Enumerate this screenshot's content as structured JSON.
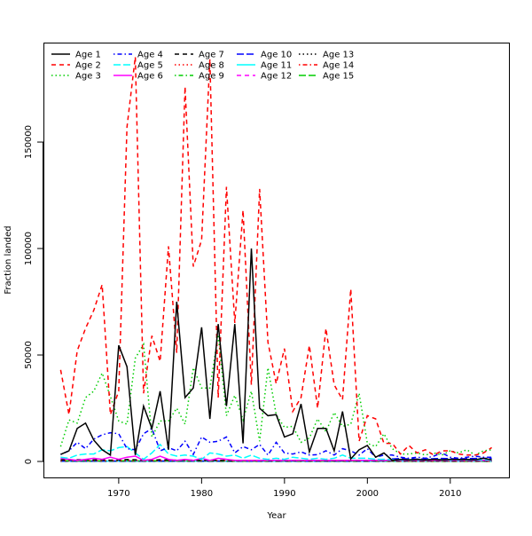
{
  "chart_data": {
    "type": "line",
    "xlabel": "Year",
    "ylabel": "Fraction landed",
    "xlim": [
      1960.92,
      2017.08
    ],
    "ylim": [
      -7500,
      196700
    ],
    "x_ticks": [
      1970,
      1980,
      1990,
      2000,
      2010
    ],
    "y_ticks": [
      0,
      50000,
      100000,
      150000
    ],
    "x_tick_labels": [
      "1970",
      "1980",
      "1990",
      "2000",
      "2010"
    ],
    "y_tick_labels": [
      "0",
      "50000",
      "100000",
      "150000"
    ],
    "grid": false,
    "legend_position": "top-left",
    "x_start": 1963,
    "x_end": 2015,
    "series": [
      {
        "name": "Age 1",
        "color": "#000000",
        "style": "solid",
        "values": [
          3300,
          5000,
          15500,
          18000,
          10000,
          5500,
          3000,
          54500,
          44500,
          3000,
          26000,
          15500,
          33000,
          5500,
          75000,
          30000,
          34500,
          63000,
          20000,
          64500,
          26000,
          64500,
          8500,
          100000,
          25000,
          21500,
          22000,
          11500,
          13000,
          27000,
          4500,
          15500,
          15500,
          5000,
          23500,
          1200,
          5500,
          7500,
          2000,
          4000,
          500,
          1000,
          800,
          1000,
          700,
          1000,
          800,
          1000,
          900,
          1000,
          800,
          1500,
          800
        ]
      },
      {
        "name": "Age 2",
        "color": "#ff0000",
        "style": "dashed",
        "values": [
          43000,
          22000,
          52000,
          62500,
          71000,
          83000,
          22000,
          33000,
          157000,
          190000,
          32000,
          59000,
          47000,
          101000,
          51000,
          176000,
          91500,
          104000,
          189000,
          30000,
          129000,
          65000,
          118000,
          36000,
          128000,
          56000,
          36500,
          53000,
          23500,
          30000,
          54500,
          25000,
          62500,
          36000,
          29000,
          81000,
          9500,
          21500,
          20000,
          8500,
          8500,
          3500,
          7500,
          4000,
          5500,
          3000,
          5000,
          5000,
          3500,
          3000,
          3000,
          4000,
          6500
        ]
      },
      {
        "name": "Age 3",
        "color": "#00cd00",
        "style": "dotted",
        "values": [
          7000,
          19500,
          18000,
          30000,
          33000,
          41500,
          30500,
          19000,
          17500,
          48500,
          55000,
          11500,
          19000,
          19000,
          25000,
          17500,
          44000,
          34500,
          34500,
          59500,
          21500,
          31000,
          19500,
          33000,
          9500,
          44000,
          22000,
          16000,
          16500,
          9000,
          11000,
          20000,
          14000,
          23000,
          16500,
          17500,
          32000,
          8500,
          7000,
          13000,
          6000,
          3500,
          3500,
          4000,
          3000,
          4000,
          3000,
          5000,
          4000,
          5500,
          3000,
          5000,
          5500
        ]
      },
      {
        "name": "Age 4",
        "color": "#0000ff",
        "style": "dotdash",
        "values": [
          3300,
          5000,
          9000,
          6000,
          10500,
          12500,
          13500,
          13000,
          6000,
          5500,
          13000,
          15500,
          5000,
          6500,
          5000,
          9500,
          3300,
          11500,
          9000,
          9500,
          11500,
          4000,
          7000,
          5500,
          8000,
          3000,
          9000,
          4000,
          3500,
          4500,
          3000,
          3200,
          5000,
          3000,
          6000,
          5000,
          3000,
          6000,
          2000,
          3000,
          3000,
          2000,
          1500,
          2000,
          1500,
          2500,
          4000,
          2000,
          1500,
          2000,
          2500,
          2000,
          2000
        ]
      },
      {
        "name": "Age 5",
        "color": "#00ffff",
        "style": "longdash",
        "values": [
          2000,
          1500,
          3000,
          3500,
          3500,
          5500,
          5000,
          6500,
          7000,
          4000,
          1000,
          4000,
          8000,
          3500,
          2500,
          3000,
          2500,
          1000,
          4000,
          3500,
          2500,
          3000,
          1500,
          3000,
          1500,
          1000,
          1500,
          1000,
          2000,
          1500,
          1000,
          1500,
          1000,
          1500,
          3000,
          1500,
          1500,
          1500,
          1000,
          1000,
          800,
          800,
          800,
          800,
          800,
          1000,
          800,
          800,
          800,
          800,
          800,
          800,
          800
        ]
      },
      {
        "name": "Age 6",
        "color": "#ff00ff",
        "style": "solid",
        "values": [
          1500,
          1000,
          500,
          1000,
          1500,
          1000,
          2000,
          1000,
          2000,
          2500,
          500,
          1000,
          2500,
          1000,
          500,
          1000,
          500,
          1500,
          500,
          1500,
          1000,
          500,
          500,
          500,
          500,
          500,
          500,
          500,
          500,
          500,
          500,
          500,
          500,
          500,
          500,
          500,
          500,
          500,
          500,
          500,
          500,
          500,
          500,
          500,
          500,
          500,
          500,
          500,
          500,
          500,
          500,
          500,
          500
        ]
      },
      {
        "name": "Age 7",
        "color": "#000000",
        "style": "dashed",
        "values": [
          800,
          700,
          800,
          900,
          700,
          800,
          600,
          700,
          900,
          800,
          700,
          600,
          800,
          700,
          600,
          700,
          600,
          500,
          600,
          500,
          500,
          400,
          500,
          400,
          400,
          300,
          300,
          300,
          300,
          300,
          300,
          300,
          300,
          300,
          300,
          300,
          300,
          300,
          300,
          300,
          200,
          200,
          200,
          200,
          200,
          200,
          200,
          200,
          200,
          200,
          200,
          200,
          200
        ]
      },
      {
        "name": "Age 8",
        "color": "#ff0000",
        "style": "dotted",
        "values": [
          400,
          400,
          400,
          400,
          400,
          400,
          400,
          400,
          400,
          400,
          400,
          400,
          400,
          400,
          400,
          400,
          400,
          400,
          400,
          400,
          300,
          300,
          300,
          300,
          300,
          300,
          300,
          300,
          300,
          300,
          300,
          300,
          300,
          300,
          300,
          300,
          300,
          300,
          300,
          300,
          200,
          200,
          200,
          200,
          200,
          200,
          200,
          200,
          200,
          200,
          200,
          200,
          200
        ]
      },
      {
        "name": "Age 9",
        "color": "#00cd00",
        "style": "dotdash",
        "values": [
          300,
          300,
          300,
          300,
          300,
          300,
          300,
          300,
          300,
          300,
          300,
          300,
          300,
          300,
          300,
          300,
          300,
          300,
          300,
          300,
          200,
          200,
          200,
          200,
          200,
          200,
          200,
          200,
          200,
          200,
          200,
          200,
          200,
          200,
          200,
          200,
          200,
          200,
          200,
          200,
          150,
          150,
          150,
          150,
          150,
          150,
          150,
          150,
          150,
          150,
          150,
          150,
          150
        ]
      },
      {
        "name": "Age 10",
        "color": "#0000ff",
        "style": "longdash",
        "values": [
          200,
          200,
          200,
          200,
          200,
          200,
          200,
          200,
          200,
          200,
          200,
          200,
          200,
          200,
          200,
          200,
          200,
          200,
          200,
          200,
          150,
          150,
          150,
          150,
          150,
          150,
          150,
          150,
          150,
          150,
          150,
          150,
          150,
          150,
          150,
          150,
          150,
          150,
          150,
          150,
          1200,
          1300,
          1200,
          1100,
          1200,
          1300,
          1400,
          1300,
          1200,
          1300,
          1400,
          1500,
          1500
        ]
      },
      {
        "name": "Age 11",
        "color": "#00ffff",
        "style": "solid",
        "values": [
          150,
          150,
          150,
          150,
          150,
          150,
          150,
          150,
          150,
          150,
          150,
          150,
          150,
          150,
          150,
          150,
          150,
          150,
          150,
          150,
          100,
          100,
          100,
          100,
          100,
          100,
          100,
          100,
          100,
          100,
          100,
          100,
          100,
          100,
          100,
          100,
          100,
          100,
          100,
          100,
          100,
          100,
          100,
          100,
          100,
          100,
          100,
          100,
          100,
          100,
          100,
          100,
          100
        ]
      },
      {
        "name": "Age 12",
        "color": "#ff00ff",
        "style": "dashed",
        "values": [
          100,
          100,
          100,
          100,
          100,
          100,
          100,
          100,
          100,
          100,
          100,
          100,
          100,
          100,
          100,
          100,
          100,
          100,
          100,
          100,
          100,
          100,
          100,
          100,
          100,
          100,
          100,
          100,
          100,
          100,
          100,
          100,
          100,
          100,
          100,
          100,
          100,
          100,
          100,
          100,
          100,
          100,
          100,
          100,
          100,
          100,
          100,
          100,
          100,
          100,
          100,
          100,
          100
        ]
      },
      {
        "name": "Age 13",
        "color": "#000000",
        "style": "dotted",
        "values": [
          80,
          80,
          80,
          80,
          80,
          80,
          80,
          80,
          80,
          80,
          80,
          80,
          80,
          80,
          80,
          80,
          80,
          80,
          80,
          80,
          80,
          80,
          80,
          80,
          80,
          80,
          80,
          80,
          80,
          80,
          80,
          80,
          80,
          80,
          80,
          80,
          80,
          80,
          80,
          80,
          80,
          80,
          80,
          80,
          80,
          80,
          80,
          80,
          80,
          80,
          80,
          80,
          80
        ]
      },
      {
        "name": "Age 14",
        "color": "#ff0000",
        "style": "dotdash",
        "values": [
          60,
          60,
          60,
          60,
          60,
          60,
          60,
          60,
          60,
          60,
          60,
          60,
          60,
          60,
          60,
          60,
          60,
          60,
          60,
          60,
          60,
          60,
          60,
          60,
          60,
          60,
          60,
          60,
          60,
          60,
          60,
          60,
          60,
          60,
          60,
          60,
          60,
          60,
          60,
          60,
          60,
          60,
          60,
          60,
          60,
          60,
          60,
          60,
          60,
          60,
          60,
          60,
          60
        ]
      },
      {
        "name": "Age 15",
        "color": "#00cd00",
        "style": "longdash",
        "values": [
          40,
          40,
          40,
          40,
          40,
          40,
          40,
          40,
          40,
          40,
          40,
          40,
          40,
          40,
          40,
          40,
          40,
          40,
          40,
          40,
          40,
          40,
          40,
          40,
          40,
          40,
          40,
          40,
          40,
          40,
          40,
          40,
          40,
          40,
          40,
          40,
          40,
          40,
          40,
          40,
          40,
          40,
          40,
          40,
          40,
          40,
          40,
          40,
          40,
          40,
          40,
          40,
          40
        ]
      }
    ]
  }
}
